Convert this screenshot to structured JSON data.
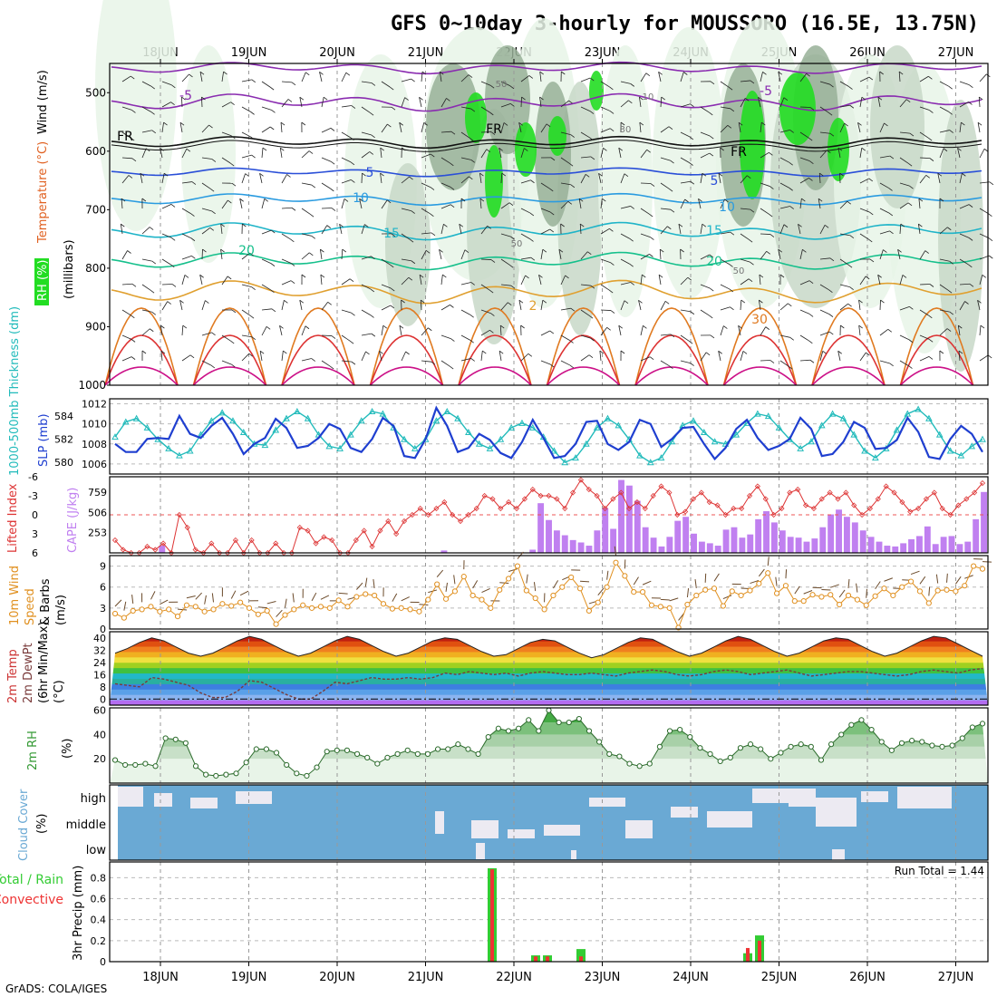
{
  "title": "GFS 0~10day 3-hourly for MOUSSORO (16.5E, 13.75N)",
  "credit": "GrADS: COLA/IGES",
  "run_total": "Run Total = 1.44",
  "dates": [
    "18JUN",
    "19JUN",
    "20JUN",
    "21JUN",
    "22JUN",
    "23JUN",
    "24JUN",
    "25JUN",
    "26JUN",
    "27JUN"
  ],
  "colors": {
    "rh_light": "#e8f4e8",
    "rh_mid": "#c8d8c8",
    "rh_dark": "#98b098",
    "rh_green": "#22dd22",
    "cloud_blue": "#6aa9d4",
    "rain_green": "#33cc33",
    "conv_red": "#ee3333",
    "slp": "#1f3fd0",
    "thick": "#22bbbb",
    "cape": "#c080f0",
    "li": "#dd3333",
    "wind_speed": "#e09020",
    "barb": "#6b4a2a",
    "rh2m": "#339933"
  },
  "panels": {
    "upper": {
      "ylabels": [
        "RH (%)",
        "Temperature (°C)",
        "Wind (m/s)",
        "(millibars)"
      ],
      "levels": [
        "500",
        "600",
        "700",
        "800",
        "900",
        "1000"
      ],
      "contour_labels": [
        "-5",
        "-5",
        "FR",
        "FR",
        "FR",
        "5",
        "5",
        "10",
        "10",
        "15",
        "15",
        "20",
        "20",
        "2",
        "30",
        "50",
        "50",
        "50",
        "10",
        "30"
      ]
    },
    "slp": {
      "ylabel_left": "1000-500mb Thickness (dm)",
      "ylabel_right": "SLP (mb)",
      "left_ticks": [
        "584",
        "582",
        "580"
      ],
      "right_ticks": [
        "1012",
        "1010",
        "1008",
        "1006"
      ]
    },
    "cape": {
      "ylabel_left": "Lifted Index",
      "ylabel_right": "CAPE (J/kg)",
      "left_ticks": [
        "-6",
        "-3",
        "0",
        "3",
        "6"
      ],
      "right_ticks": [
        "759",
        "506",
        "253"
      ]
    },
    "wind": {
      "ylabel": [
        "10m Wind",
        "Speed",
        "& Barbs",
        "(m/s)"
      ],
      "ticks": [
        "9",
        "6",
        "3",
        "0"
      ]
    },
    "temp": {
      "ylabel": [
        "2m Temp",
        "2m DewPt",
        "(6hr Min/Max)",
        "(°C)"
      ],
      "ticks": [
        "40",
        "32",
        "24",
        "16",
        "8",
        "0"
      ]
    },
    "rh2m": {
      "ylabel": [
        "2m RH",
        "(%)"
      ],
      "ticks": [
        "60",
        "40",
        "20"
      ]
    },
    "cloud": {
      "ylabel": [
        "Cloud Cover",
        "(%)"
      ],
      "ticks": [
        "high",
        "middle",
        "low"
      ]
    },
    "precip": {
      "ylabel": [
        "Total / Rain",
        "Convective",
        "3hr Precip (mm)"
      ],
      "ticks": [
        "0.8",
        "0.6",
        "0.4",
        "0.2",
        "0"
      ]
    }
  },
  "chart_data": [
    {
      "type": "line",
      "title": "",
      "xlabel": "",
      "ylabel": "SLP (mb)",
      "ylim": [
        1005,
        1012
      ],
      "series": [
        {
          "name": "SLP (mb)",
          "values": [
            1008.0,
            1007.2,
            1007.2,
            1008.5,
            1008.6,
            1008.5,
            1010.8,
            1009.0,
            1008.6,
            1009.8,
            1010.6,
            1009.0,
            1007.0,
            1008.0,
            1008.6,
            1010.5,
            1009.6,
            1007.6,
            1007.8,
            1008.6,
            1010.0,
            1009.5,
            1007.6,
            1007.2,
            1008.5,
            1010.6,
            1009.8,
            1006.8,
            1006.6,
            1008.5,
            1011.6,
            1009.8,
            1007.2,
            1007.6,
            1009.0,
            1008.4,
            1007.1,
            1006.6,
            1008.2,
            1010.4,
            1008.6,
            1006.6,
            1006.8,
            1008.0,
            1010.2,
            1010.3,
            1008.0,
            1007.4,
            1008.2,
            1010.4,
            1010.0,
            1007.7,
            1008.5,
            1009.6,
            1009.7,
            1008.0,
            1006.5,
            1007.6,
            1009.5,
            1010.4,
            1008.6,
            1007.4,
            1007.8,
            1008.5,
            1010.6,
            1009.5,
            1006.8,
            1007.0,
            1008.2,
            1010.2,
            1009.6,
            1007.5,
            1007.6,
            1008.4,
            1010.6,
            1009.2,
            1006.7,
            1006.5,
            1008.5,
            1009.8,
            1009.0,
            1007.2
          ]
        },
        {
          "name": "1000-500mb Thickness (dm)",
          "values": [
            582.2,
            583.5,
            583.8,
            583.0,
            582.0,
            581.2,
            580.6,
            581.0,
            582.4,
            583.6,
            584.3,
            583.6,
            582.6,
            581.6,
            581.5,
            582.8,
            583.8,
            584.4,
            583.8,
            582.4,
            581.4,
            581.2,
            582.4,
            583.6,
            584.4,
            584.2,
            583.0,
            582.0,
            581.2,
            582.0,
            583.6,
            584.4,
            583.8,
            582.6,
            581.6,
            581.2,
            582.0,
            583.0,
            583.4,
            583.0,
            582.2,
            581.0,
            580.0,
            580.4,
            581.6,
            583.0,
            583.8,
            583.2,
            582.0,
            580.6,
            580.0,
            580.4,
            581.8,
            583.2,
            583.6,
            582.6,
            581.8,
            581.6,
            582.4,
            583.4,
            584.2,
            584.0,
            583.0,
            582.0,
            581.2,
            581.8,
            583.2,
            584.2,
            583.8,
            582.4,
            581.0,
            580.4,
            581.2,
            582.8,
            584.2,
            584.6,
            583.8,
            582.4,
            581.0,
            580.6,
            581.4,
            582.0
          ]
        }
      ]
    },
    {
      "type": "bar",
      "title": "",
      "xlabel": "",
      "ylabel": "CAPE (J/kg)",
      "ylim": [
        0,
        950
      ],
      "values": [
        0,
        0,
        0,
        0,
        0,
        0,
        90,
        0,
        0,
        0,
        0,
        0,
        0,
        0,
        0,
        0,
        0,
        0,
        0,
        0,
        0,
        0,
        0,
        0,
        0,
        0,
        0,
        0,
        0,
        0,
        0,
        0,
        0,
        0,
        0,
        0,
        0,
        0,
        0,
        0,
        0,
        30,
        0,
        0,
        0,
        0,
        0,
        0,
        0,
        0,
        0,
        0,
        40,
        620,
        410,
        280,
        220,
        160,
        130,
        90,
        280,
        560,
        300,
        910,
        840,
        650,
        320,
        190,
        80,
        200,
        400,
        450,
        240,
        140,
        120,
        90,
        290,
        320,
        190,
        230,
        420,
        520,
        380,
        280,
        200,
        190,
        140,
        180,
        320,
        480,
        540,
        450,
        380,
        280,
        200,
        140,
        90,
        80,
        120,
        170,
        210,
        330,
        110,
        200,
        210,
        110,
        140,
        420,
        760
      ]
    },
    {
      "type": "line",
      "title": "",
      "xlabel": "",
      "ylabel": "Lifted Index",
      "ylim": [
        6,
        -6
      ],
      "values": [
        4.0,
        5.5,
        6.0,
        6.0,
        5.0,
        5.5,
        4.5,
        6.0,
        0.0,
        2.0,
        5.5,
        6.0,
        4.5,
        6.0,
        6.0,
        4.0,
        6.0,
        4.0,
        6.0,
        6.0,
        4.5,
        6.0,
        6.0,
        2.0,
        2.5,
        4.5,
        3.5,
        4.0,
        6.0,
        6.0,
        4.0,
        2.5,
        5.0,
        2.5,
        1.0,
        3.0,
        1.0,
        0.0,
        -1.0,
        0.0,
        -1.0,
        -2.0,
        0.0,
        1.0,
        0.0,
        -1.0,
        -3.0,
        -2.5,
        -1.0,
        -2.0,
        -1.0,
        -2.5,
        -4.0,
        -3.0,
        -3.0,
        -2.5,
        -1.0,
        -3.5,
        -5.5,
        -4.0,
        -3.0,
        -1.0,
        -2.5,
        -3.5,
        -1.0,
        -2.0,
        -1.0,
        -3.0,
        -4.5,
        -3.5,
        0.0,
        -0.5,
        -2.5,
        -3.5,
        -2.0,
        -1.5,
        0.0,
        -1.0,
        -1.0,
        -3.0,
        -4.5,
        -2.5,
        0.0,
        -1.0,
        -3.5,
        -4.0,
        -1.5,
        -1.0,
        -2.5,
        -3.5,
        -2.5,
        -3.5,
        -1.5,
        0.0,
        -1.0,
        -2.5,
        -4.5,
        -3.5,
        -2.0,
        -0.5,
        -1.0,
        -2.5,
        -3.5,
        -1.0,
        0.0,
        -1.5,
        -2.5,
        -3.5,
        -5.0
      ]
    },
    {
      "type": "line",
      "title": "",
      "xlabel": "",
      "ylabel": "10m Wind Speed (m/s)",
      "ylim": [
        0,
        10
      ],
      "values": [
        2.2,
        1.6,
        2.6,
        2.8,
        3.2,
        2.5,
        2.8,
        1.8,
        3.4,
        3.2,
        2.5,
        2.8,
        3.6,
        3.3,
        3.8,
        3.0,
        2.1,
        2.6,
        0.7,
        2.0,
        2.8,
        3.4,
        3.0,
        3.2,
        3.0,
        4.1,
        3.2,
        4.6,
        5.0,
        4.8,
        3.6,
        2.9,
        3.0,
        2.8,
        2.5,
        4.2,
        6.4,
        4.3,
        5.4,
        7.5,
        4.8,
        4.2,
        3.0,
        5.6,
        7.2,
        9.0,
        5.5,
        4.4,
        2.8,
        4.8,
        6.0,
        7.4,
        5.8,
        2.6,
        3.8,
        6.0,
        9.5,
        7.6,
        5.3,
        5.3,
        3.4,
        3.2,
        3.0,
        0.2,
        3.5,
        4.8,
        5.6,
        5.8,
        3.3,
        5.4,
        4.8,
        5.5,
        6.5,
        8.0,
        5.1,
        6.2,
        4.0,
        4.0,
        4.9,
        4.6,
        4.9,
        3.5,
        4.8,
        4.2,
        3.4,
        4.7,
        5.8,
        4.8,
        6.0,
        6.8,
        5.4,
        3.7,
        5.5,
        5.6,
        5.4,
        6.2,
        9.0,
        8.6
      ]
    },
    {
      "type": "area",
      "title": "",
      "xlabel": "",
      "ylabel": "2m Temp (°C)",
      "ylim": [
        -4,
        44
      ],
      "series": [
        {
          "name": "2m Temp",
          "values": [
            30,
            33,
            37,
            40,
            38,
            34,
            30,
            28,
            30,
            34,
            38,
            41,
            39,
            35,
            31,
            28,
            30,
            34,
            38,
            41,
            39,
            35,
            31,
            28,
            30,
            34,
            38,
            40,
            39,
            35,
            31,
            28,
            29,
            33,
            37,
            39,
            38,
            34,
            30,
            27,
            29,
            33,
            37,
            40,
            39,
            35,
            31,
            28,
            30,
            34,
            38,
            41,
            39,
            35,
            31,
            28,
            30,
            34,
            38,
            40,
            39,
            35,
            31,
            28,
            30,
            34,
            38,
            41,
            40,
            36,
            32,
            28
          ]
        },
        {
          "name": "2m DewPt",
          "values": [
            10,
            9,
            8,
            14,
            13,
            11,
            9,
            4,
            1,
            1,
            5,
            12,
            11,
            7,
            3,
            0,
            0,
            5,
            11,
            10,
            12,
            14,
            13,
            13,
            14,
            13,
            14,
            17,
            16,
            18,
            17,
            16,
            17,
            15,
            17,
            18,
            17,
            16,
            16,
            17,
            16,
            15,
            17,
            18,
            19,
            18,
            16,
            15,
            16,
            18,
            19,
            18,
            16,
            17,
            18,
            19,
            17,
            15,
            16,
            17,
            18,
            18,
            17,
            16,
            15,
            16,
            18,
            19,
            18,
            17,
            19,
            20
          ]
        }
      ]
    },
    {
      "type": "area",
      "title": "",
      "xlabel": "",
      "ylabel": "2m RH (%)",
      "ylim": [
        0,
        62
      ],
      "values": [
        19,
        15,
        15,
        16,
        14,
        37,
        36,
        33,
        14,
        7,
        6,
        7,
        8,
        17,
        28,
        28,
        25,
        15,
        8,
        6,
        13,
        26,
        27,
        27,
        24,
        21,
        16,
        21,
        24,
        27,
        24,
        24,
        28,
        28,
        32,
        28,
        24,
        38,
        45,
        43,
        45,
        52,
        43,
        60,
        50,
        50,
        53,
        43,
        34,
        24,
        22,
        16,
        14,
        16,
        30,
        43,
        44,
        38,
        29,
        24,
        18,
        21,
        29,
        32,
        28,
        20,
        25,
        30,
        32,
        30,
        19,
        32,
        40,
        48,
        52,
        44,
        34,
        27,
        33,
        35,
        34,
        31,
        30,
        31,
        37,
        46,
        49
      ]
    },
    {
      "type": "bar",
      "title": "",
      "xlabel": "",
      "ylabel": "3hr Precip (mm)",
      "ylim": [
        0,
        0.95
      ],
      "categories": [
        "21JUN 18Z",
        "22JUN 06Z",
        "22JUN 09Z",
        "22JUN 18Z",
        "24JUN 18Z",
        "24JUN 21Z"
      ],
      "series": [
        {
          "name": "Total",
          "values": [
            0.89,
            0.06,
            0.06,
            0.12,
            0.08,
            0.25
          ]
        },
        {
          "name": "Convective",
          "values": [
            0.88,
            0.05,
            0.05,
            0.05,
            0.13,
            0.2
          ]
        }
      ]
    }
  ]
}
